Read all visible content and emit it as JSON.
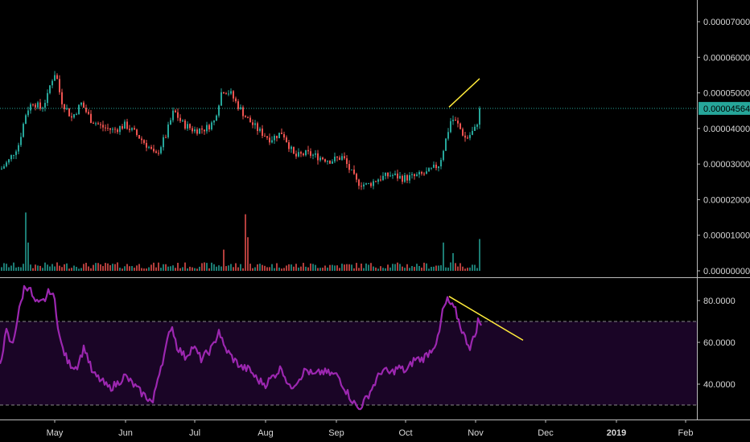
{
  "colors": {
    "background": "#000000",
    "up": "#26a69a",
    "down": "#ef5350",
    "rsi_line": "#9c27b0",
    "rsi_band": "#1a0526",
    "trend_line": "#ffeb3b",
    "axis_text": "#d9d9d9",
    "current_price_line": "#26a69a",
    "current_price_label_bg": "#26a69a"
  },
  "chart_data": [
    {
      "type": "candlestick",
      "panel": "price",
      "y_axis_ticks": [
        "0.00007000",
        "0.00006000",
        "0.00005000",
        "0.00004000",
        "0.00003000",
        "0.00002000",
        "0.00001000",
        "0.00000000"
      ],
      "ylim": [
        0,
        7.75e-05
      ],
      "current_price": "0.00004564",
      "price_anchors": [
        [
          0,
          2.85e-05
        ],
        [
          10,
          3.1e-05
        ],
        [
          22,
          3.55e-05
        ],
        [
          32,
          4.5e-05
        ],
        [
          40,
          4.75e-05
        ],
        [
          50,
          4.55e-05
        ],
        [
          58,
          4.9e-05
        ],
        [
          62,
          5.3e-05
        ],
        [
          68,
          5.6e-05
        ],
        [
          75,
          4.8e-05
        ],
        [
          88,
          4.3e-05
        ],
        [
          100,
          4.7e-05
        ],
        [
          112,
          4.25e-05
        ],
        [
          125,
          4.05e-05
        ],
        [
          140,
          3.95e-05
        ],
        [
          155,
          4.1e-05
        ],
        [
          170,
          3.8e-05
        ],
        [
          185,
          3.45e-05
        ],
        [
          192,
          3.2e-05
        ],
        [
          205,
          3.8e-05
        ],
        [
          215,
          4.5e-05
        ],
        [
          225,
          4.15e-05
        ],
        [
          240,
          3.95e-05
        ],
        [
          255,
          4e-05
        ],
        [
          265,
          4.2e-05
        ],
        [
          275,
          5.1e-05
        ],
        [
          285,
          5e-05
        ],
        [
          293,
          4.7e-05
        ],
        [
          305,
          4.3e-05
        ],
        [
          320,
          3.95e-05
        ],
        [
          335,
          3.7e-05
        ],
        [
          350,
          3.9e-05
        ],
        [
          365,
          3.2e-05
        ],
        [
          380,
          3.3e-05
        ],
        [
          395,
          3.2e-05
        ],
        [
          410,
          3.1e-05
        ],
        [
          425,
          3.2e-05
        ],
        [
          432,
          2.9e-05
        ],
        [
          442,
          2.5e-05
        ],
        [
          455,
          2.4e-05
        ],
        [
          470,
          2.6e-05
        ],
        [
          485,
          2.7e-05
        ],
        [
          500,
          2.6e-05
        ],
        [
          515,
          2.65e-05
        ],
        [
          530,
          2.75e-05
        ],
        [
          545,
          3e-05
        ],
        [
          552,
          3.6e-05
        ],
        [
          560,
          4.3e-05
        ],
        [
          568,
          4.1e-05
        ],
        [
          578,
          3.7e-05
        ],
        [
          590,
          4e-05
        ],
        [
          596,
          4.56e-05
        ]
      ],
      "volume_spikes": [
        [
          32,
          1.65e-05
        ],
        [
          34,
          8e-06
        ],
        [
          303,
          1.6e-05
        ],
        [
          306,
          9.5e-06
        ],
        [
          596,
          9e-06
        ],
        [
          550,
          8e-06
        ],
        [
          561,
          5e-06
        ],
        [
          278,
          6e-06
        ]
      ],
      "trend_line": {
        "x": [
          558,
          596
        ],
        "y": [
          4.6e-05,
          5.4e-05
        ]
      }
    },
    {
      "type": "line",
      "panel": "rsi",
      "name": "",
      "y_axis_ticks": [
        "80.0000",
        "60.0000",
        "40.0000"
      ],
      "ylim": [
        27,
        89
      ],
      "band": [
        30,
        70
      ],
      "rsi_anchors": [
        [
          0,
          50
        ],
        [
          8,
          65
        ],
        [
          15,
          58
        ],
        [
          22,
          72
        ],
        [
          30,
          86
        ],
        [
          36,
          87
        ],
        [
          42,
          80
        ],
        [
          48,
          78
        ],
        [
          55,
          80
        ],
        [
          62,
          85
        ],
        [
          68,
          80
        ],
        [
          75,
          60
        ],
        [
          85,
          50
        ],
        [
          95,
          48
        ],
        [
          105,
          58
        ],
        [
          115,
          45
        ],
        [
          125,
          42
        ],
        [
          135,
          38
        ],
        [
          145,
          40
        ],
        [
          155,
          44
        ],
        [
          165,
          40
        ],
        [
          175,
          36
        ],
        [
          185,
          33
        ],
        [
          190,
          31
        ],
        [
          197,
          45
        ],
        [
          205,
          55
        ],
        [
          213,
          69
        ],
        [
          220,
          58
        ],
        [
          230,
          53
        ],
        [
          240,
          58
        ],
        [
          250,
          52
        ],
        [
          258,
          55
        ],
        [
          265,
          58
        ],
        [
          272,
          66
        ],
        [
          278,
          58
        ],
        [
          290,
          52
        ],
        [
          300,
          48
        ],
        [
          310,
          47
        ],
        [
          320,
          42
        ],
        [
          330,
          40
        ],
        [
          340,
          44
        ],
        [
          350,
          48
        ],
        [
          360,
          38
        ],
        [
          370,
          42
        ],
        [
          380,
          47
        ],
        [
          390,
          44
        ],
        [
          400,
          46
        ],
        [
          410,
          45
        ],
        [
          420,
          44
        ],
        [
          430,
          37
        ],
        [
          438,
          32
        ],
        [
          446,
          28
        ],
        [
          455,
          33
        ],
        [
          465,
          40
        ],
        [
          475,
          47
        ],
        [
          485,
          45
        ],
        [
          495,
          48
        ],
        [
          505,
          46
        ],
        [
          515,
          52
        ],
        [
          525,
          52
        ],
        [
          535,
          56
        ],
        [
          545,
          62
        ],
        [
          550,
          75
        ],
        [
          556,
          80
        ],
        [
          560,
          78
        ],
        [
          566,
          75
        ],
        [
          572,
          68
        ],
        [
          578,
          62
        ],
        [
          584,
          58
        ],
        [
          590,
          63
        ],
        [
          595,
          72
        ],
        [
          598,
          67
        ]
      ],
      "trend_line": {
        "x": [
          558,
          650
        ],
        "y": [
          82,
          61
        ]
      }
    }
  ],
  "x_axis": {
    "labels": [
      "May",
      "Jun",
      "Jul",
      "Aug",
      "Sep",
      "Oct",
      "Nov",
      "Dec",
      "2019",
      "Feb"
    ],
    "bold_labels": [
      "2019"
    ]
  }
}
